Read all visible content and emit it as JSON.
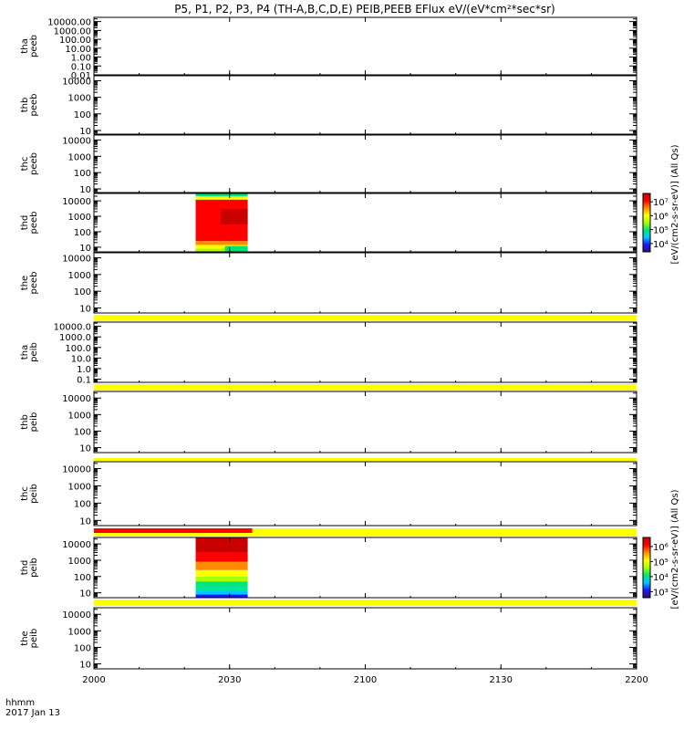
{
  "title": "P5, P1, P2, P3, P4 (TH-A,B,C,D,E) PEIB,PEEB EFlux eV/(eV*cm²*sec*sr)",
  "time_axis": {
    "label_line1": "hhmm",
    "label_line2": "2017 Jan 13",
    "ticks": [
      "2000",
      "2030",
      "2100",
      "2130",
      "2200"
    ],
    "tick_minutes": [
      0,
      30,
      60,
      90,
      120
    ],
    "range_minutes": [
      0,
      120
    ]
  },
  "colorbars": [
    {
      "label": "[eV/(cm2-s-sr-eV)] (All Qs)",
      "ticks": [
        "10⁷",
        "10⁶",
        "10⁵",
        "10⁴"
      ],
      "tick_exponents": [
        7,
        6,
        5,
        4
      ],
      "range_exponent": [
        3.4,
        7.6
      ],
      "colors": [
        "#3b0a6e",
        "#1a1aff",
        "#00c8ff",
        "#00e676",
        "#aaff00",
        "#ffff00",
        "#ff8c00",
        "#ff0000",
        "#c80000"
      ]
    },
    {
      "label": "[eV/(cm2-s-sr-eV)] (All Qs)",
      "ticks": [
        "10⁶",
        "10⁵",
        "10⁴",
        "10³"
      ],
      "tick_exponents": [
        6,
        5,
        4,
        3
      ],
      "range_exponent": [
        2.6,
        6.6
      ],
      "colors": [
        "#3b0a6e",
        "#1a1aff",
        "#00c8ff",
        "#00e676",
        "#aaff00",
        "#ffff00",
        "#ff8c00",
        "#ff0000",
        "#c80000"
      ]
    }
  ],
  "chart_data": [
    {
      "type": "heatmap",
      "panel": 1,
      "ylabel_line1": "tha",
      "ylabel_line2": "peeb",
      "yscale": "log",
      "ylim": [
        0.01,
        30000
      ],
      "ytick_labels": [
        "10000.00",
        "1000.00",
        "100.00",
        "10.00",
        "1.00",
        "0.10",
        "0.01"
      ],
      "ytick_values": [
        10000,
        1000,
        100,
        10,
        1,
        0.1,
        0.01
      ],
      "data_blocks": [],
      "status_bars": []
    },
    {
      "type": "heatmap",
      "panel": 2,
      "ylabel_line1": "thb",
      "ylabel_line2": "peeb",
      "yscale": "log",
      "ylim": [
        6,
        20000
      ],
      "ytick_labels": [
        "10000",
        "1000",
        "100",
        "10"
      ],
      "ytick_values": [
        10000,
        1000,
        100,
        10
      ],
      "data_blocks": [],
      "status_bars": []
    },
    {
      "type": "heatmap",
      "panel": 3,
      "ylabel_line1": "thc",
      "ylabel_line2": "peeb",
      "yscale": "log",
      "ylim": [
        6,
        20000
      ],
      "ytick_labels": [
        "10000",
        "1000",
        "100",
        "10"
      ],
      "ytick_values": [
        10000,
        1000,
        100,
        10
      ],
      "data_blocks": [],
      "status_bars": []
    },
    {
      "type": "heatmap",
      "panel": 4,
      "ylabel_line1": "thd",
      "ylabel_line2": "peeb",
      "yscale": "log",
      "ylim": [
        5,
        30000
      ],
      "ytick_labels": [
        "10000",
        "1000",
        "100",
        "10"
      ],
      "ytick_values": [
        10000,
        1000,
        100,
        10
      ],
      "colorbar": 0,
      "data_blocks": [
        {
          "t_start": 22.5,
          "t_end": 34.0,
          "bands": [
            {
              "e_low": 5,
              "e_high": 8,
              "color": "#aaff00"
            },
            {
              "e_low": 8,
              "e_high": 14,
              "color": "#ffff00"
            },
            {
              "e_low": 14,
              "e_high": 25,
              "color": "#ff8c00"
            },
            {
              "e_low": 25,
              "e_high": 12000,
              "color": "#ff0000"
            },
            {
              "e_low": 12000,
              "e_high": 20000,
              "color": "#ffff00"
            },
            {
              "e_low": 20000,
              "e_high": 30000,
              "color": "#00e676"
            }
          ],
          "patches": [
            {
              "t_start": 28.0,
              "t_end": 34.0,
              "e_low": 300,
              "e_high": 3000,
              "color": "#c80000"
            },
            {
              "t_start": 29.0,
              "t_end": 34.0,
              "e_low": 5,
              "e_high": 12,
              "color": "#00e676"
            }
          ]
        }
      ],
      "status_bars": []
    },
    {
      "type": "heatmap",
      "panel": 5,
      "ylabel_line1": "the",
      "ylabel_line2": "peeb",
      "yscale": "log",
      "ylim": [
        5,
        20000
      ],
      "ytick_labels": [
        "10000",
        "1000",
        "100",
        "10"
      ],
      "ytick_values": [
        10000,
        1000,
        100,
        10
      ],
      "data_blocks": [],
      "status_bars": [
        {
          "t_start": 0,
          "t_end": 120,
          "color": "#ffff00"
        }
      ]
    },
    {
      "type": "heatmap",
      "panel": 6,
      "ylabel_line1": "tha",
      "ylabel_line2": "peib",
      "yscale": "log",
      "ylim": [
        0.05,
        25000
      ],
      "ytick_labels": [
        "10000.0",
        "1000.0",
        "100.0",
        "10.0",
        "1.0",
        "0.1"
      ],
      "ytick_values": [
        10000,
        1000,
        100,
        10,
        1,
        0.1
      ],
      "data_blocks": [],
      "status_bars": [
        {
          "t_start": 0,
          "t_end": 120,
          "color": "#ffff00"
        }
      ]
    },
    {
      "type": "heatmap",
      "panel": 7,
      "ylabel_line1": "thb",
      "ylabel_line2": "peib",
      "yscale": "log",
      "ylim": [
        5,
        25000
      ],
      "ytick_labels": [
        "10000",
        "1000",
        "100",
        "10"
      ],
      "ytick_values": [
        10000,
        1000,
        100,
        10
      ],
      "data_blocks": [],
      "status_bars": [
        {
          "t_start": 0,
          "t_end": 120,
          "color": "#ffff00"
        }
      ]
    },
    {
      "type": "heatmap",
      "panel": 8,
      "ylabel_line1": "thc",
      "ylabel_line2": "peib",
      "yscale": "log",
      "ylim": [
        5,
        25000
      ],
      "ytick_labels": [
        "10000",
        "1000",
        "100",
        "10"
      ],
      "ytick_values": [
        10000,
        1000,
        100,
        10
      ],
      "data_blocks": [],
      "status_bars": [
        {
          "t_start": 0,
          "t_end": 120,
          "color": "#ffff00"
        },
        {
          "t_start": 0,
          "t_end": 35,
          "color": "#ff0000"
        }
      ]
    },
    {
      "type": "heatmap",
      "panel": 9,
      "ylabel_line1": "thd",
      "ylabel_line2": "peib",
      "yscale": "log",
      "ylim": [
        5,
        25000
      ],
      "ytick_labels": [
        "10000",
        "1000",
        "100",
        "10"
      ],
      "ytick_values": [
        10000,
        1000,
        100,
        10
      ],
      "colorbar": 1,
      "data_blocks": [
        {
          "t_start": 22.5,
          "t_end": 34.0,
          "bands": [
            {
              "e_low": 5,
              "e_high": 8,
              "color": "#1a1aff"
            },
            {
              "e_low": 8,
              "e_high": 14,
              "color": "#00c8ff"
            },
            {
              "e_low": 14,
              "e_high": 25,
              "color": "#00e6a0"
            },
            {
              "e_low": 25,
              "e_high": 50,
              "color": "#00e676"
            },
            {
              "e_low": 50,
              "e_high": 100,
              "color": "#aaff00"
            },
            {
              "e_low": 100,
              "e_high": 250,
              "color": "#ffff00"
            },
            {
              "e_low": 250,
              "e_high": 800,
              "color": "#ff8c00"
            },
            {
              "e_low": 800,
              "e_high": 3000,
              "color": "#ff0000"
            },
            {
              "e_low": 3000,
              "e_high": 25000,
              "color": "#c80000"
            }
          ],
          "patches": []
        }
      ],
      "status_bars": [
        {
          "t_start": 0,
          "t_end": 120,
          "color": "#ffff00"
        }
      ]
    },
    {
      "type": "heatmap",
      "panel": 10,
      "ylabel_line1": "the",
      "ylabel_line2": "peib",
      "yscale": "log",
      "ylim": [
        5,
        25000
      ],
      "ytick_labels": [
        "10000",
        "1000",
        "100",
        "10"
      ],
      "ytick_values": [
        10000,
        1000,
        100,
        10
      ],
      "data_blocks": [],
      "status_bars": []
    }
  ]
}
